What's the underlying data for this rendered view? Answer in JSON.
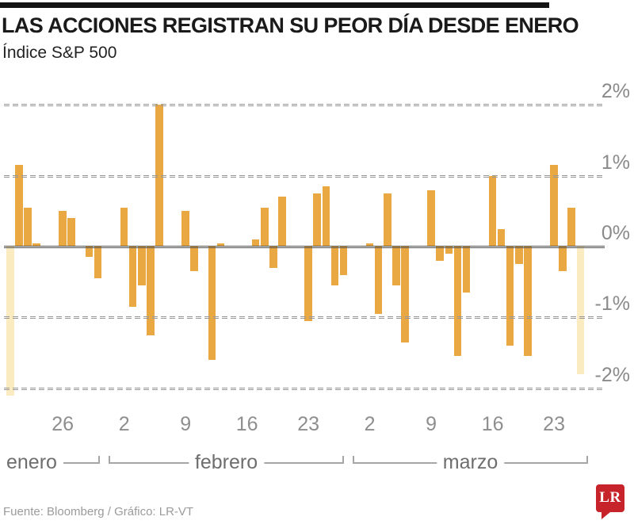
{
  "footer": {
    "source": "Fuente: Bloomberg / Gráfico: LR-VT",
    "logo_text": "LR"
  },
  "chart_data": {
    "type": "bar",
    "title": "LAS ACCIONES REGISTRAN SU PEOR DÍA DESDE ENERO",
    "subtitle": "Índice S&P 500",
    "unit": "%",
    "ylim": [
      -2.3,
      2.2
    ],
    "grid": "dashed-horizontal",
    "legend": "none",
    "y_ticks": [
      {
        "label": "2%",
        "value": 2
      },
      {
        "label": "1%",
        "value": 1
      },
      {
        "label": "0%",
        "value": 0
      },
      {
        "label": "-1%",
        "value": -1
      },
      {
        "label": "-2%",
        "value": -2
      }
    ],
    "x_ticks": [
      {
        "label": "26",
        "day": 6
      },
      {
        "label": "2",
        "day": 13
      },
      {
        "label": "9",
        "day": 20
      },
      {
        "label": "16",
        "day": 27
      },
      {
        "label": "23",
        "day": 34
      },
      {
        "label": "2",
        "day": 41
      },
      {
        "label": "9",
        "day": 48
      },
      {
        "label": "16",
        "day": 55
      },
      {
        "label": "23",
        "day": 62
      }
    ],
    "months": [
      {
        "label": "enero",
        "days": [
          0,
          11
        ]
      },
      {
        "label": "febrero",
        "days": [
          12,
          39
        ]
      },
      {
        "label": "marzo",
        "days": [
          40,
          66
        ]
      }
    ],
    "series": [
      {
        "day": 0,
        "value": -2.1,
        "highlight": true
      },
      {
        "day": 1,
        "value": 1.15
      },
      {
        "day": 2,
        "value": 0.55
      },
      {
        "day": 3,
        "value": 0.05
      },
      {
        "day": 6,
        "value": 0.5
      },
      {
        "day": 7,
        "value": 0.4
      },
      {
        "day": 8,
        "value": 0.0
      },
      {
        "day": 9,
        "value": -0.15
      },
      {
        "day": 10,
        "value": -0.45
      },
      {
        "day": 13,
        "value": 0.55
      },
      {
        "day": 14,
        "value": -0.85
      },
      {
        "day": 15,
        "value": -0.55
      },
      {
        "day": 16,
        "value": -1.25
      },
      {
        "day": 17,
        "value": 2.0
      },
      {
        "day": 20,
        "value": 0.5
      },
      {
        "day": 21,
        "value": -0.35
      },
      {
        "day": 22,
        "value": 0.0
      },
      {
        "day": 23,
        "value": -1.6
      },
      {
        "day": 24,
        "value": 0.05
      },
      {
        "day": 28,
        "value": 0.1
      },
      {
        "day": 29,
        "value": 0.55
      },
      {
        "day": 30,
        "value": -0.3
      },
      {
        "day": 31,
        "value": 0.7
      },
      {
        "day": 34,
        "value": -1.05
      },
      {
        "day": 35,
        "value": 0.75
      },
      {
        "day": 36,
        "value": 0.85
      },
      {
        "day": 37,
        "value": -0.55
      },
      {
        "day": 38,
        "value": -0.4
      },
      {
        "day": 41,
        "value": 0.05
      },
      {
        "day": 42,
        "value": -0.95
      },
      {
        "day": 43,
        "value": 0.75
      },
      {
        "day": 44,
        "value": -0.55
      },
      {
        "day": 45,
        "value": -1.35
      },
      {
        "day": 48,
        "value": 0.8
      },
      {
        "day": 49,
        "value": -0.2
      },
      {
        "day": 50,
        "value": -0.1
      },
      {
        "day": 51,
        "value": -1.55
      },
      {
        "day": 52,
        "value": -0.65
      },
      {
        "day": 55,
        "value": 1.0
      },
      {
        "day": 56,
        "value": 0.25
      },
      {
        "day": 57,
        "value": -1.4
      },
      {
        "day": 58,
        "value": -0.25
      },
      {
        "day": 59,
        "value": -1.55
      },
      {
        "day": 62,
        "value": 1.15
      },
      {
        "day": 63,
        "value": -0.35
      },
      {
        "day": 64,
        "value": 0.55
      },
      {
        "day": 65,
        "value": -1.8,
        "highlight": true
      }
    ],
    "colors": {
      "bar": "#EAA843",
      "bar_highlight": "#FAEBC0",
      "zero_line": "#4f4f4f",
      "grid_line": "#979797",
      "logo_red": "#C7232A"
    }
  }
}
